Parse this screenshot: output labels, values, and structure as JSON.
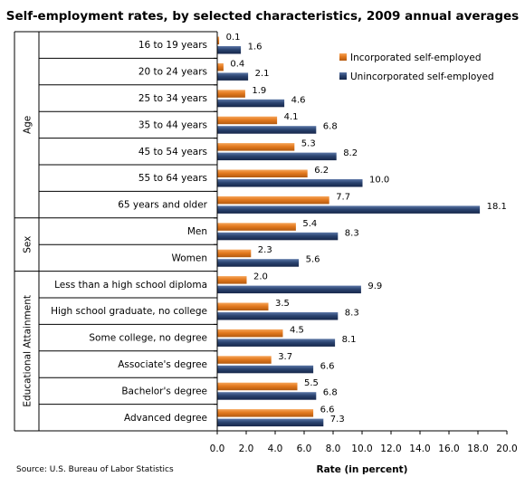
{
  "chart_data": {
    "type": "bar",
    "orientation": "horizontal",
    "title": "Self-employment rates, by selected characteristics, 2009 annual averages",
    "xlabel": "Rate (in percent)",
    "ylabel": "",
    "xlim": [
      0,
      20
    ],
    "x_ticks": [
      "0.0",
      "2.0",
      "4.0",
      "6.0",
      "8.0",
      "10.0",
      "12.0",
      "14.0",
      "16.0",
      "18.0",
      "20.0"
    ],
    "grid": false,
    "legend_position": "top-right",
    "source": "Source: U.S. Bureau of Labor Statistics",
    "groups": [
      {
        "label": "Age",
        "span": [
          0,
          6
        ]
      },
      {
        "label": "Sex",
        "span": [
          7,
          8
        ]
      },
      {
        "label": "Educational Attainment",
        "span": [
          9,
          14
        ]
      }
    ],
    "categories": [
      "16 to 19 years",
      "20 to 24 years",
      "25 to 34 years",
      "35 to 44 years",
      "45 to 54 years",
      "55 to 64 years",
      "65 years and older",
      "Men",
      "Women",
      "Less than a high school diploma",
      "High school graduate, no college",
      "Some college, no degree",
      "Associate's degree",
      "Bachelor's degree",
      "Advanced degree"
    ],
    "series": [
      {
        "name": "Incorporated self-employed",
        "color": "#E3791E",
        "values": [
          0.1,
          0.4,
          1.9,
          4.1,
          5.3,
          6.2,
          7.7,
          5.4,
          2.3,
          2.0,
          3.5,
          4.5,
          3.7,
          5.5,
          6.6
        ]
      },
      {
        "name": "Unincorporated self-employed",
        "color": "#2B4470",
        "values": [
          1.6,
          2.1,
          4.6,
          6.8,
          8.2,
          10.0,
          18.1,
          8.3,
          5.6,
          9.9,
          8.3,
          8.1,
          6.6,
          6.8,
          7.3
        ]
      }
    ]
  }
}
